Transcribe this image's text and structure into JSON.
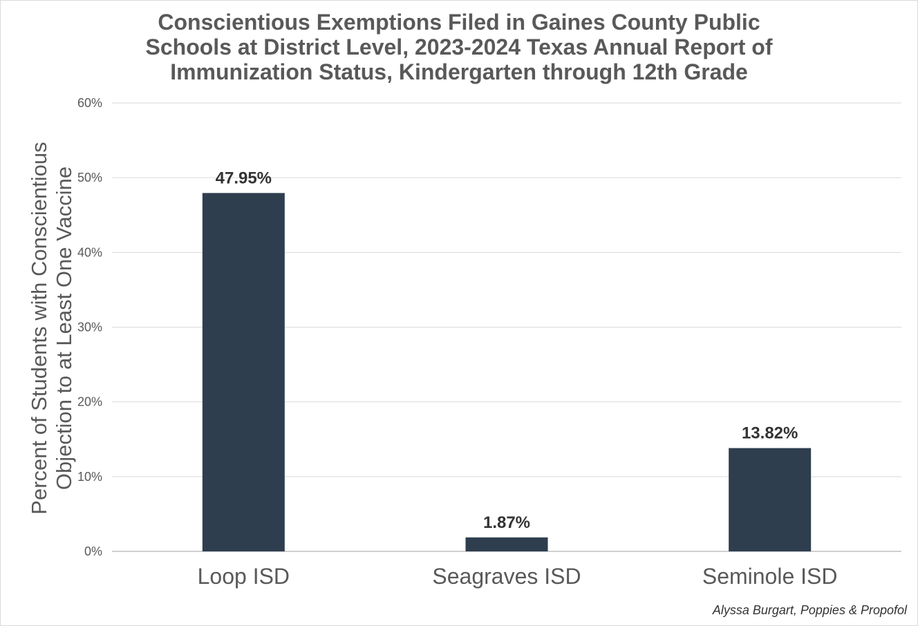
{
  "chart_data": {
    "type": "bar",
    "title_lines": [
      "Conscientious Exemptions Filed in Gaines County Public",
      "Schools at District Level, 2023-2024 Texas Annual Report of",
      "Immunization Status, Kindergarten through 12th Grade"
    ],
    "ylabel_lines": [
      "Percent of Students with Conscientious",
      "Objection to at Least One Vaccine"
    ],
    "categories": [
      "Loop ISD",
      "Seagraves ISD",
      "Seminole ISD"
    ],
    "values": [
      47.95,
      1.87,
      13.82
    ],
    "data_labels": [
      "47.95%",
      "1.87%",
      "13.82%"
    ],
    "ylim": [
      0,
      60
    ],
    "yticks": [
      0,
      10,
      20,
      30,
      40,
      50,
      60
    ],
    "ytick_labels": [
      "0%",
      "10%",
      "20%",
      "30%",
      "40%",
      "50%",
      "60%"
    ],
    "grid": true,
    "bar_color": "#2e3e4f",
    "grid_color": "#d9d9d9",
    "text_color": "#595959"
  },
  "credit": "Alyssa Burgart, Poppies & Propofol"
}
